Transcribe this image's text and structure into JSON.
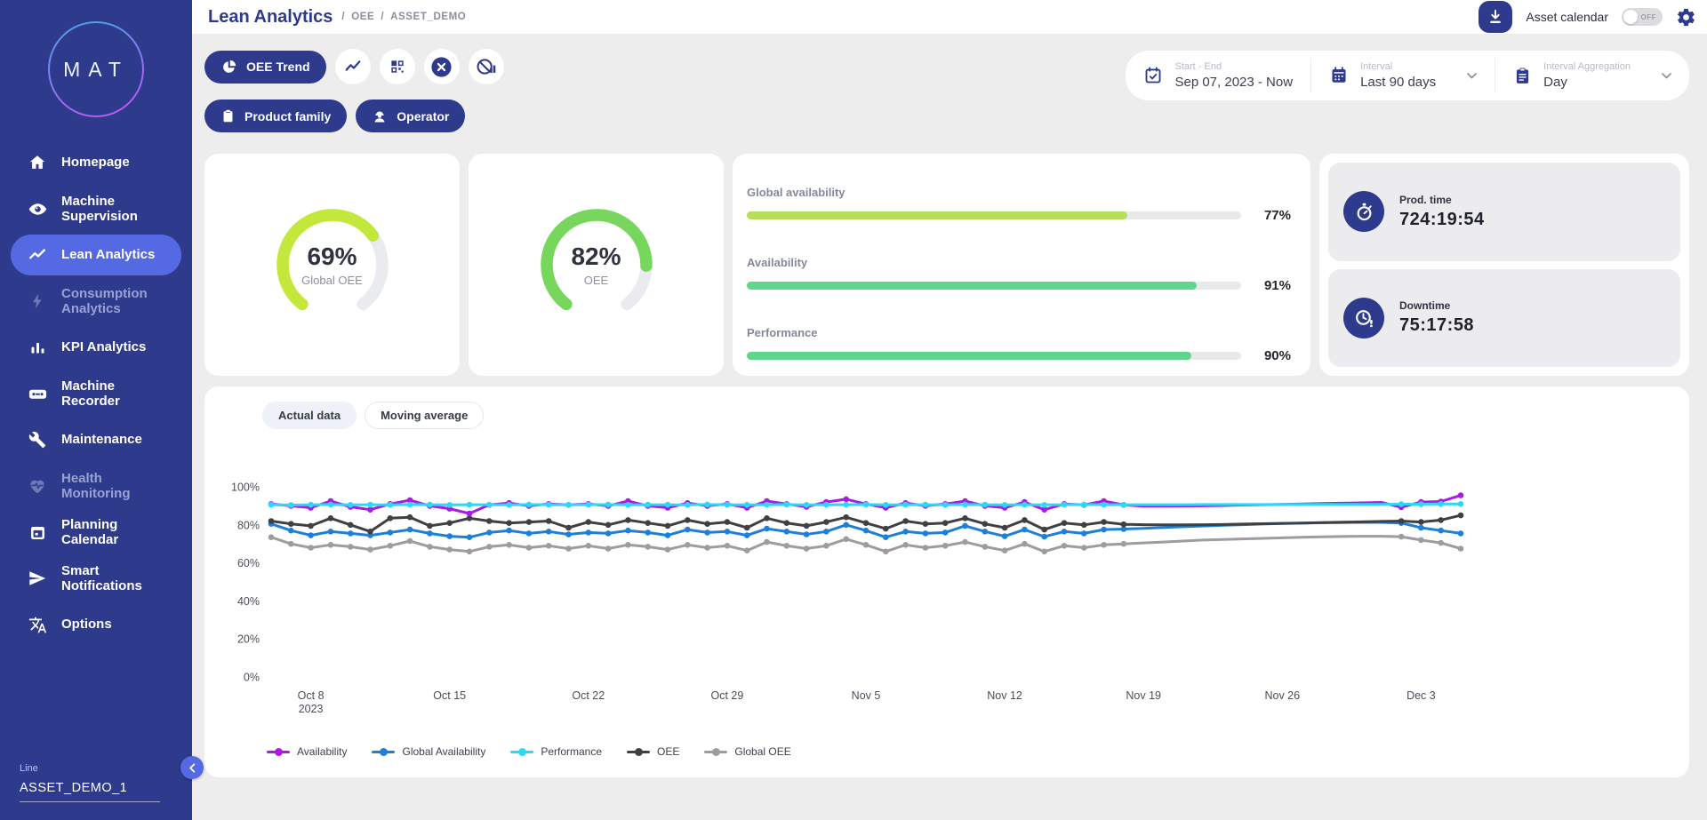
{
  "sidebar": {
    "logo_text": "MAT",
    "items": [
      {
        "label": "Homepage"
      },
      {
        "label": "Machine Supervision"
      },
      {
        "label": "Lean Analytics"
      },
      {
        "label": "Consumption Analytics"
      },
      {
        "label": "KPI Analytics"
      },
      {
        "label": "Machine Recorder"
      },
      {
        "label": "Maintenance"
      },
      {
        "label": "Health Monitoring"
      },
      {
        "label": "Planning Calendar"
      },
      {
        "label": "Smart Notifications"
      },
      {
        "label": "Options"
      }
    ],
    "footer": {
      "label": "Line",
      "value": "ASSET_DEMO_1"
    }
  },
  "header": {
    "title": "Lean Analytics",
    "breadcrumb": [
      "OEE",
      "ASSET_DEMO"
    ],
    "separator": "/",
    "asset_calendar_label": "Asset calendar",
    "asset_calendar_state": "OFF"
  },
  "filters": {
    "primary_label": "OEE Trend",
    "product_family_label": "Product family",
    "operator_label": "Operator",
    "panel": [
      {
        "label": "Start - End",
        "value": "Sep 07, 2023 - Now"
      },
      {
        "label": "Interval",
        "value": "Last 90 days"
      },
      {
        "label": "Interval Aggregation",
        "value": "Day"
      }
    ]
  },
  "kpis": {
    "gauges": [
      {
        "display": "69%",
        "value": 69,
        "label": "Global OEE",
        "color": "#c3e83b"
      },
      {
        "display": "82%",
        "value": 82,
        "label": "OEE",
        "color": "#77d75c"
      }
    ],
    "bars": [
      {
        "label": "Global availability",
        "display": "77%",
        "value": 77,
        "color": "#b5df5b"
      },
      {
        "label": "Availability",
        "display": "91%",
        "value": 91,
        "color": "#5fd68d"
      },
      {
        "label": "Performance",
        "display": "90%",
        "value": 90,
        "color": "#5fd68d"
      }
    ],
    "times": [
      {
        "label": "Prod. time",
        "value": "724:19:54"
      },
      {
        "label": "Downtime",
        "value": "75:17:58"
      }
    ]
  },
  "chart_tabs": [
    {
      "label": "Actual data"
    },
    {
      "label": "Moving average"
    }
  ],
  "chart_data": {
    "type": "line",
    "ylim": [
      0,
      100
    ],
    "y_ticks": [
      0,
      20,
      40,
      60,
      80,
      100
    ],
    "y_suffix": "%",
    "x_ticks": [
      {
        "label": "Oct 8",
        "sublabel": "2023",
        "index": 2
      },
      {
        "label": "Oct 15",
        "index": 9
      },
      {
        "label": "Oct 22",
        "index": 16
      },
      {
        "label": "Oct 29",
        "index": 23
      },
      {
        "label": "Nov 5",
        "index": 30
      },
      {
        "label": "Nov 12",
        "index": 37
      },
      {
        "label": "Nov 19",
        "index": 44
      },
      {
        "label": "Nov 26",
        "index": 51
      },
      {
        "label": "Dec 3",
        "index": 58
      }
    ],
    "marker_hidden_range": [
      44,
      56
    ],
    "series": [
      {
        "name": "Availability",
        "color": "#ab19e8",
        "values": [
          91,
          90,
          89,
          92.5,
          89.5,
          88,
          91,
          93,
          90,
          88.5,
          86,
          90.5,
          91.5,
          90,
          91,
          90.5,
          91,
          90,
          92.5,
          90,
          89,
          91.5,
          90,
          91,
          89,
          92.5,
          91,
          89.5,
          92,
          93.5,
          91,
          89,
          91.5,
          90,
          91,
          92.5,
          90,
          89,
          92,
          88,
          91,
          90.5,
          92.5,
          90.5,
          89.8,
          89.8,
          89.9,
          90,
          90.2,
          90.4,
          90.6,
          90.8,
          91,
          91.2,
          91.4,
          91.6,
          91.8,
          89.3,
          92,
          92.3,
          95.5
        ]
      },
      {
        "name": "Global Availability",
        "color": "#1e7fd9",
        "values": [
          80.5,
          77,
          74.5,
          76.5,
          75.5,
          74.5,
          76,
          77.5,
          75.5,
          74,
          73.5,
          76,
          77,
          75.5,
          76.5,
          75,
          76,
          75.5,
          77,
          76,
          74.5,
          77.5,
          76,
          76.5,
          74.5,
          78,
          76.5,
          75,
          76.5,
          80,
          77,
          73.5,
          76.5,
          75.5,
          76,
          79.5,
          76.5,
          74,
          77.5,
          73.8,
          76.5,
          75.5,
          77.5,
          77.8,
          78.2,
          78.6,
          79,
          79.4,
          79.8,
          80.1,
          80.4,
          80.7,
          80.9,
          81.1,
          81.2,
          81.3,
          81.3,
          81,
          78.5,
          77,
          75.5
        ]
      },
      {
        "name": "Performance",
        "color": "#2bd9f6",
        "values": [
          90.6,
          90.4,
          90.6,
          90.7,
          90.5,
          90.6,
          90.5,
          90.7,
          90.6,
          90.5,
          90.6,
          90.6,
          90.5,
          90.7,
          90.6,
          90.5,
          90.6,
          90.7,
          90.5,
          90.6,
          90.6,
          90.5,
          90.7,
          90.6,
          90.5,
          90.6,
          90.7,
          90.5,
          90.6,
          90.6,
          90.7,
          90.5,
          90.6,
          90.6,
          90.5,
          90.7,
          90.6,
          90.5,
          90.6,
          90.5,
          90.6,
          90.7,
          90.6,
          90.6,
          90.6,
          90.6,
          90.6,
          90.7,
          90.7,
          90.7,
          90.7,
          90.7,
          90.8,
          90.8,
          90.8,
          90.8,
          90.8,
          90.9,
          90.9,
          91,
          91
        ]
      },
      {
        "name": "OEE",
        "color": "#3f3f44",
        "values": [
          82,
          80.5,
          79.5,
          83.5,
          80,
          76.5,
          83.5,
          84,
          79.5,
          81,
          83.5,
          82,
          81,
          81.5,
          82,
          78.5,
          81.5,
          80,
          82.5,
          81,
          79.5,
          82.5,
          80.5,
          81.5,
          78.5,
          83.5,
          81,
          79.5,
          81.5,
          84,
          81,
          78,
          82,
          80.5,
          81,
          83.5,
          80.5,
          78.5,
          82.5,
          77.5,
          81,
          80,
          81.5,
          80.3,
          80.1,
          80,
          80,
          80.1,
          80.2,
          80.4,
          80.6,
          80.8,
          81,
          81.2,
          81.4,
          81.6,
          81.8,
          82,
          81.5,
          82.5,
          85
        ]
      },
      {
        "name": "Global OEE",
        "color": "#9c9ca1",
        "values": [
          73.5,
          70,
          68,
          69.5,
          68.5,
          67,
          69,
          71.5,
          68.5,
          67,
          66,
          68.5,
          69.5,
          68,
          69,
          67.5,
          69,
          67.5,
          69.5,
          68.5,
          67,
          69.5,
          68,
          69,
          66.5,
          71,
          69,
          67.5,
          69,
          72.5,
          69.5,
          66,
          69.5,
          68,
          69,
          71,
          68.5,
          66.5,
          70,
          66,
          69,
          68,
          69.5,
          70,
          70.5,
          71,
          71.5,
          72,
          72.3,
          72.6,
          72.9,
          73.2,
          73.5,
          73.7,
          73.9,
          74,
          74,
          73.8,
          72,
          70.5,
          67.5
        ]
      }
    ]
  }
}
